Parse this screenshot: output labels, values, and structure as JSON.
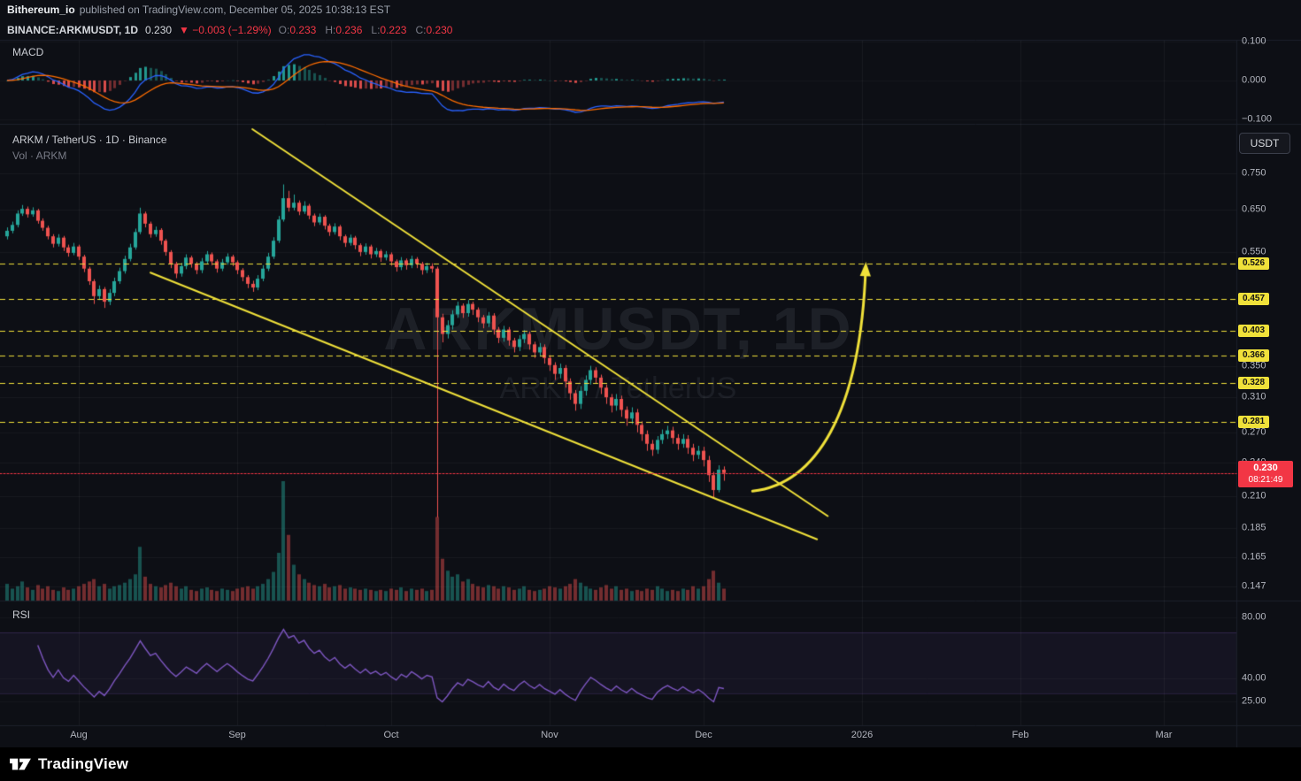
{
  "attribution": {
    "author": "Bithereum_io",
    "text": "published on TradingView.com, December 05, 2025 10:38:13 EST"
  },
  "symbol_bar": {
    "symbol": "BINANCE:ARKMUSDT, 1D",
    "last": "0.230",
    "change": "▼ −0.003 (−1.29%)",
    "ohlc": [
      {
        "label": "O:",
        "value": "0.233"
      },
      {
        "label": "H:",
        "value": "0.236"
      },
      {
        "label": "L:",
        "value": "0.223"
      },
      {
        "label": "C:",
        "value": "0.230"
      }
    ]
  },
  "main_pane": {
    "title": "ARKM / TetherUS · 1D · Binance",
    "subtitle": "Vol · ARKM",
    "watermark_line1": "ARKMUSDT, 1D",
    "watermark_line2": "ARKM / TetherUS",
    "currency_button": "USDT"
  },
  "macd_pane": {
    "label": "MACD",
    "ticks": [
      {
        "label": "0.100",
        "value": 0.1
      },
      {
        "label": "0.000",
        "value": 0
      },
      {
        "label": "−0.100",
        "value": -0.1
      }
    ]
  },
  "rsi_pane": {
    "label": "RSI",
    "ticks": [
      {
        "label": "80.00",
        "value": 80
      },
      {
        "label": "40.00",
        "value": 40
      },
      {
        "label": "25.00",
        "value": 25
      }
    ]
  },
  "price_scale": {
    "gray_ticks": [
      {
        "label": "0.750",
        "value": 0.75
      },
      {
        "label": "0.650",
        "value": 0.65
      },
      {
        "label": "0.550",
        "value": 0.55
      },
      {
        "label": "0.350",
        "value": 0.35
      },
      {
        "label": "0.310",
        "value": 0.31
      },
      {
        "label": "0.270",
        "value": 0.27
      },
      {
        "label": "0.240",
        "value": 0.24
      },
      {
        "label": "0.210",
        "value": 0.21
      },
      {
        "label": "0.185",
        "value": 0.185
      },
      {
        "label": "0.165",
        "value": 0.165
      },
      {
        "label": "0.147",
        "value": 0.147
      }
    ],
    "yellow_levels": [
      {
        "label": "0.526",
        "value": 0.526
      },
      {
        "label": "0.457",
        "value": 0.457
      },
      {
        "label": "0.403",
        "value": 0.403
      },
      {
        "label": "0.366",
        "value": 0.366
      },
      {
        "label": "0.328",
        "value": 0.328
      },
      {
        "label": "0.281",
        "value": 0.281
      }
    ],
    "last_price": {
      "label": "0.230",
      "value": 0.23,
      "countdown": "08:21:49"
    }
  },
  "time_axis": {
    "months": [
      {
        "label": "Aug",
        "day_index": 14
      },
      {
        "label": "Sep",
        "day_index": 45
      },
      {
        "label": "Oct",
        "day_index": 75
      },
      {
        "label": "Nov",
        "day_index": 106
      },
      {
        "label": "Dec",
        "day_index": 136
      },
      {
        "label": "2026",
        "day_index": 167
      },
      {
        "label": "Feb",
        "day_index": 198
      },
      {
        "label": "Mar",
        "day_index": 226
      }
    ]
  },
  "footer": {
    "brand": "TradingView"
  },
  "colors": {
    "background": "#0d0f15",
    "up": "#26a69a",
    "down": "#ef5350",
    "yellow": "#f0e13a",
    "macd_line": "#2962ff",
    "signal_line": "#ff6d00",
    "rsi_line": "#7e57c2",
    "last_price": "#f23645",
    "axis_text": "#b2b5be"
  },
  "chart_data": {
    "type": "candlestick",
    "symbol": "ARKM/USDT",
    "exchange": "Binance",
    "interval": "1D",
    "y_axis": "price (USDT, log scale)",
    "x_axis": "time (daily candles)",
    "first_candle_date": "2025-07-18",
    "ohlc_last": {
      "o": 0.233,
      "h": 0.236,
      "l": 0.223,
      "c": 0.23
    },
    "candles": [
      [
        0.585,
        0.606,
        0.578,
        0.598
      ],
      [
        0.598,
        0.62,
        0.592,
        0.612
      ],
      [
        0.612,
        0.648,
        0.606,
        0.64
      ],
      [
        0.64,
        0.662,
        0.634,
        0.652
      ],
      [
        0.652,
        0.658,
        0.63,
        0.638
      ],
      [
        0.638,
        0.656,
        0.632,
        0.648
      ],
      [
        0.648,
        0.652,
        0.615,
        0.622
      ],
      [
        0.622,
        0.628,
        0.598,
        0.605
      ],
      [
        0.605,
        0.61,
        0.578,
        0.585
      ],
      [
        0.585,
        0.59,
        0.56,
        0.568
      ],
      [
        0.568,
        0.59,
        0.562,
        0.582
      ],
      [
        0.582,
        0.586,
        0.552,
        0.56
      ],
      [
        0.56,
        0.566,
        0.54,
        0.548
      ],
      [
        0.548,
        0.57,
        0.543,
        0.562
      ],
      [
        0.562,
        0.566,
        0.533,
        0.54
      ],
      [
        0.54,
        0.544,
        0.508,
        0.515
      ],
      [
        0.515,
        0.519,
        0.483,
        0.49
      ],
      [
        0.49,
        0.494,
        0.448,
        0.462
      ],
      [
        0.462,
        0.482,
        0.455,
        0.475
      ],
      [
        0.475,
        0.479,
        0.441,
        0.452
      ],
      [
        0.452,
        0.475,
        0.446,
        0.468
      ],
      [
        0.468,
        0.497,
        0.462,
        0.49
      ],
      [
        0.49,
        0.517,
        0.485,
        0.51
      ],
      [
        0.51,
        0.542,
        0.505,
        0.535
      ],
      [
        0.535,
        0.568,
        0.53,
        0.56
      ],
      [
        0.56,
        0.603,
        0.555,
        0.595
      ],
      [
        0.595,
        0.655,
        0.59,
        0.64
      ],
      [
        0.64,
        0.645,
        0.606,
        0.615
      ],
      [
        0.615,
        0.62,
        0.582,
        0.59
      ],
      [
        0.59,
        0.608,
        0.584,
        0.6
      ],
      [
        0.6,
        0.604,
        0.566,
        0.575
      ],
      [
        0.575,
        0.579,
        0.542,
        0.55
      ],
      [
        0.55,
        0.554,
        0.516,
        0.525
      ],
      [
        0.525,
        0.529,
        0.496,
        0.505
      ],
      [
        0.505,
        0.527,
        0.499,
        0.52
      ],
      [
        0.52,
        0.545,
        0.514,
        0.538
      ],
      [
        0.538,
        0.542,
        0.517,
        0.525
      ],
      [
        0.525,
        0.529,
        0.504,
        0.512
      ],
      [
        0.512,
        0.537,
        0.506,
        0.53
      ],
      [
        0.53,
        0.552,
        0.525,
        0.545
      ],
      [
        0.545,
        0.549,
        0.522,
        0.53
      ],
      [
        0.53,
        0.534,
        0.507,
        0.515
      ],
      [
        0.515,
        0.535,
        0.51,
        0.528
      ],
      [
        0.528,
        0.547,
        0.523,
        0.54
      ],
      [
        0.54,
        0.544,
        0.52,
        0.528
      ],
      [
        0.528,
        0.532,
        0.504,
        0.512
      ],
      [
        0.512,
        0.516,
        0.49,
        0.498
      ],
      [
        0.498,
        0.502,
        0.477,
        0.485
      ],
      [
        0.485,
        0.491,
        0.47,
        0.478
      ],
      [
        0.478,
        0.502,
        0.473,
        0.495
      ],
      [
        0.495,
        0.522,
        0.49,
        0.515
      ],
      [
        0.515,
        0.548,
        0.51,
        0.54
      ],
      [
        0.54,
        0.583,
        0.535,
        0.575
      ],
      [
        0.575,
        0.634,
        0.57,
        0.625
      ],
      [
        0.625,
        0.718,
        0.62,
        0.68
      ],
      [
        0.68,
        0.7,
        0.645,
        0.655
      ],
      [
        0.655,
        0.69,
        0.648,
        0.668
      ],
      [
        0.668,
        0.674,
        0.636,
        0.645
      ],
      [
        0.645,
        0.672,
        0.639,
        0.66
      ],
      [
        0.66,
        0.665,
        0.626,
        0.635
      ],
      [
        0.635,
        0.64,
        0.609,
        0.618
      ],
      [
        0.618,
        0.64,
        0.612,
        0.632
      ],
      [
        0.632,
        0.636,
        0.601,
        0.61
      ],
      [
        0.61,
        0.615,
        0.586,
        0.595
      ],
      [
        0.595,
        0.616,
        0.589,
        0.608
      ],
      [
        0.608,
        0.612,
        0.576,
        0.585
      ],
      [
        0.585,
        0.589,
        0.561,
        0.57
      ],
      [
        0.57,
        0.589,
        0.564,
        0.582
      ],
      [
        0.582,
        0.586,
        0.556,
        0.565
      ],
      [
        0.565,
        0.569,
        0.541,
        0.55
      ],
      [
        0.55,
        0.569,
        0.544,
        0.562
      ],
      [
        0.562,
        0.566,
        0.536,
        0.545
      ],
      [
        0.545,
        0.559,
        0.539,
        0.552
      ],
      [
        0.552,
        0.556,
        0.529,
        0.538
      ],
      [
        0.538,
        0.552,
        0.532,
        0.545
      ],
      [
        0.545,
        0.549,
        0.521,
        0.53
      ],
      [
        0.53,
        0.534,
        0.509,
        0.518
      ],
      [
        0.518,
        0.539,
        0.512,
        0.532
      ],
      [
        0.532,
        0.536,
        0.513,
        0.522
      ],
      [
        0.522,
        0.542,
        0.516,
        0.535
      ],
      [
        0.535,
        0.539,
        0.516,
        0.525
      ],
      [
        0.525,
        0.529,
        0.503,
        0.512
      ],
      [
        0.512,
        0.527,
        0.506,
        0.52
      ],
      [
        0.52,
        0.526,
        0.507,
        0.515
      ],
      [
        0.515,
        0.519,
        0.193,
        0.425
      ],
      [
        0.425,
        0.431,
        0.385,
        0.398
      ],
      [
        0.398,
        0.42,
        0.391,
        0.412
      ],
      [
        0.412,
        0.437,
        0.405,
        0.43
      ],
      [
        0.43,
        0.452,
        0.424,
        0.445
      ],
      [
        0.445,
        0.449,
        0.424,
        0.432
      ],
      [
        0.432,
        0.455,
        0.426,
        0.448
      ],
      [
        0.448,
        0.452,
        0.429,
        0.438
      ],
      [
        0.438,
        0.442,
        0.417,
        0.425
      ],
      [
        0.425,
        0.429,
        0.407,
        0.415
      ],
      [
        0.415,
        0.434,
        0.409,
        0.428
      ],
      [
        0.428,
        0.432,
        0.397,
        0.405
      ],
      [
        0.405,
        0.409,
        0.384,
        0.392
      ],
      [
        0.392,
        0.411,
        0.386,
        0.405
      ],
      [
        0.405,
        0.409,
        0.38,
        0.388
      ],
      [
        0.388,
        0.392,
        0.37,
        0.378
      ],
      [
        0.378,
        0.396,
        0.372,
        0.39
      ],
      [
        0.39,
        0.404,
        0.384,
        0.398
      ],
      [
        0.398,
        0.402,
        0.374,
        0.382
      ],
      [
        0.382,
        0.386,
        0.362,
        0.37
      ],
      [
        0.37,
        0.384,
        0.364,
        0.378
      ],
      [
        0.378,
        0.382,
        0.354,
        0.362
      ],
      [
        0.362,
        0.366,
        0.344,
        0.352
      ],
      [
        0.352,
        0.356,
        0.332,
        0.34
      ],
      [
        0.34,
        0.354,
        0.334,
        0.348
      ],
      [
        0.348,
        0.352,
        0.322,
        0.33
      ],
      [
        0.33,
        0.334,
        0.307,
        0.315
      ],
      [
        0.315,
        0.319,
        0.294,
        0.302
      ],
      [
        0.302,
        0.324,
        0.296,
        0.318
      ],
      [
        0.318,
        0.338,
        0.312,
        0.332
      ],
      [
        0.332,
        0.351,
        0.326,
        0.345
      ],
      [
        0.345,
        0.349,
        0.327,
        0.335
      ],
      [
        0.335,
        0.339,
        0.314,
        0.322
      ],
      [
        0.322,
        0.326,
        0.302,
        0.31
      ],
      [
        0.31,
        0.314,
        0.292,
        0.3
      ],
      [
        0.3,
        0.314,
        0.294,
        0.308
      ],
      [
        0.308,
        0.312,
        0.287,
        0.295
      ],
      [
        0.295,
        0.299,
        0.277,
        0.285
      ],
      [
        0.285,
        0.298,
        0.279,
        0.292
      ],
      [
        0.292,
        0.296,
        0.27,
        0.278
      ],
      [
        0.278,
        0.282,
        0.261,
        0.268
      ],
      [
        0.268,
        0.272,
        0.251,
        0.258
      ],
      [
        0.258,
        0.262,
        0.246,
        0.252
      ],
      [
        0.252,
        0.266,
        0.248,
        0.262
      ],
      [
        0.262,
        0.273,
        0.258,
        0.268
      ],
      [
        0.268,
        0.277,
        0.263,
        0.272
      ],
      [
        0.272,
        0.276,
        0.258,
        0.264
      ],
      [
        0.264,
        0.268,
        0.252,
        0.258
      ],
      [
        0.258,
        0.268,
        0.254,
        0.263
      ],
      [
        0.263,
        0.267,
        0.248,
        0.254
      ],
      [
        0.254,
        0.258,
        0.241,
        0.247
      ],
      [
        0.247,
        0.256,
        0.243,
        0.251
      ],
      [
        0.251,
        0.255,
        0.236,
        0.242
      ],
      [
        0.242,
        0.246,
        0.222,
        0.228
      ],
      [
        0.228,
        0.231,
        0.208,
        0.215
      ],
      [
        0.215,
        0.237,
        0.213,
        0.233
      ],
      [
        0.233,
        0.236,
        0.223,
        0.23
      ]
    ],
    "volumes": [
      14,
      10,
      12,
      16,
      11,
      9,
      13,
      10,
      12,
      9,
      8,
      11,
      9,
      10,
      12,
      14,
      16,
      18,
      12,
      14,
      10,
      12,
      13,
      15,
      18,
      22,
      45,
      20,
      14,
      12,
      11,
      13,
      15,
      12,
      10,
      12,
      9,
      8,
      10,
      11,
      9,
      8,
      10,
      9,
      8,
      10,
      11,
      12,
      10,
      12,
      14,
      18,
      24,
      40,
      100,
      55,
      30,
      22,
      18,
      15,
      13,
      12,
      14,
      11,
      12,
      13,
      10,
      11,
      10,
      9,
      10,
      9,
      8,
      9,
      8,
      10,
      9,
      11,
      8,
      10,
      9,
      10,
      8,
      9,
      70,
      35,
      25,
      20,
      22,
      16,
      18,
      14,
      12,
      11,
      13,
      12,
      10,
      12,
      11,
      9,
      10,
      12,
      9,
      8,
      9,
      10,
      12,
      11,
      10,
      12,
      14,
      18,
      15,
      12,
      10,
      9,
      11,
      13,
      10,
      12,
      9,
      10,
      8,
      9,
      8,
      10,
      9,
      12,
      10,
      8,
      9,
      8,
      10,
      9,
      12,
      10,
      12,
      18,
      25,
      15,
      10
    ],
    "drawings": {
      "trendlines": [
        {
          "name": "upper-wedge-line",
          "from": {
            "day": 47.9,
            "price": 0.893
          },
          "to": {
            "day": 160.3,
            "price": 0.194
          }
        },
        {
          "name": "lower-wedge-line",
          "from": {
            "day": 28.0,
            "price": 0.507
          },
          "to": {
            "day": 158.2,
            "price": 0.177
          }
        }
      ],
      "arrow": {
        "name": "breakout-arrow",
        "bezier": [
          {
            "day": 145.6,
            "price": 0.214
          },
          {
            "day": 157.7,
            "price": 0.22
          },
          {
            "day": 166.7,
            "price": 0.288
          },
          {
            "day": 167.7,
            "price": 0.518
          }
        ]
      },
      "horizontal_levels": [
        0.526,
        0.457,
        0.403,
        0.366,
        0.328,
        0.281
      ]
    }
  }
}
